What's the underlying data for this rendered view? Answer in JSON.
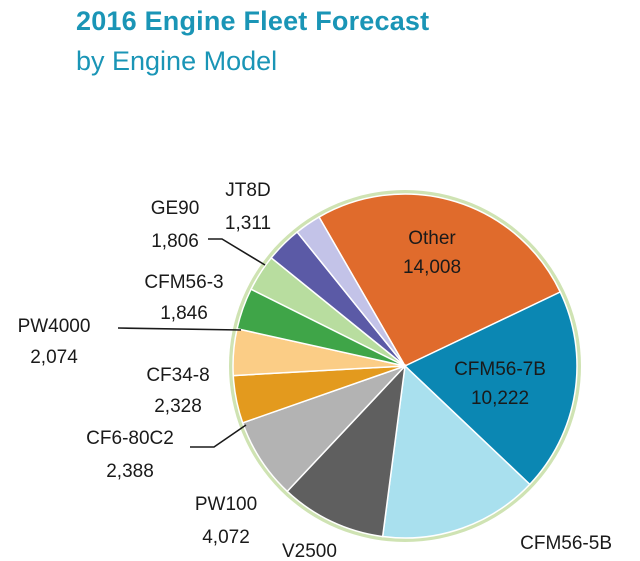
{
  "title": "2016 Engine Fleet Forecast",
  "subtitle": "by Engine Model",
  "chart_data": {
    "type": "pie",
    "legend": "none",
    "slices": [
      {
        "name": "Other",
        "value": 14008,
        "value_label": "14,008",
        "color": "#e06b2c"
      },
      {
        "name": "CFM56-7B",
        "value": 10222,
        "value_label": "10,222",
        "color": "#0b87b3"
      },
      {
        "name": "CFM56-5B",
        "value": 8000,
        "value_label": "",
        "color": "#a9e0ee"
      },
      {
        "name": "V2500",
        "value": 5300,
        "value_label": "",
        "color": "#5f5f5f"
      },
      {
        "name": "PW100",
        "value": 4072,
        "value_label": "4,072",
        "color": "#b3b3b3"
      },
      {
        "name": "CF6-80C2",
        "value": 2388,
        "value_label": "2,388",
        "color": "#e39a1e"
      },
      {
        "name": "CF34-8",
        "value": 2328,
        "value_label": "2,328",
        "color": "#fbcd86"
      },
      {
        "name": "PW4000",
        "value": 2074,
        "value_label": "2,074",
        "color": "#3fa548"
      },
      {
        "name": "CFM56-3",
        "value": 1846,
        "value_label": "1,846",
        "color": "#b8dd9f"
      },
      {
        "name": "GE90",
        "value": 1806,
        "value_label": "1,806",
        "color": "#5b5aa6"
      },
      {
        "name": "JT8D",
        "value": 1311,
        "value_label": "1,311",
        "color": "#c3c3e8"
      }
    ]
  }
}
